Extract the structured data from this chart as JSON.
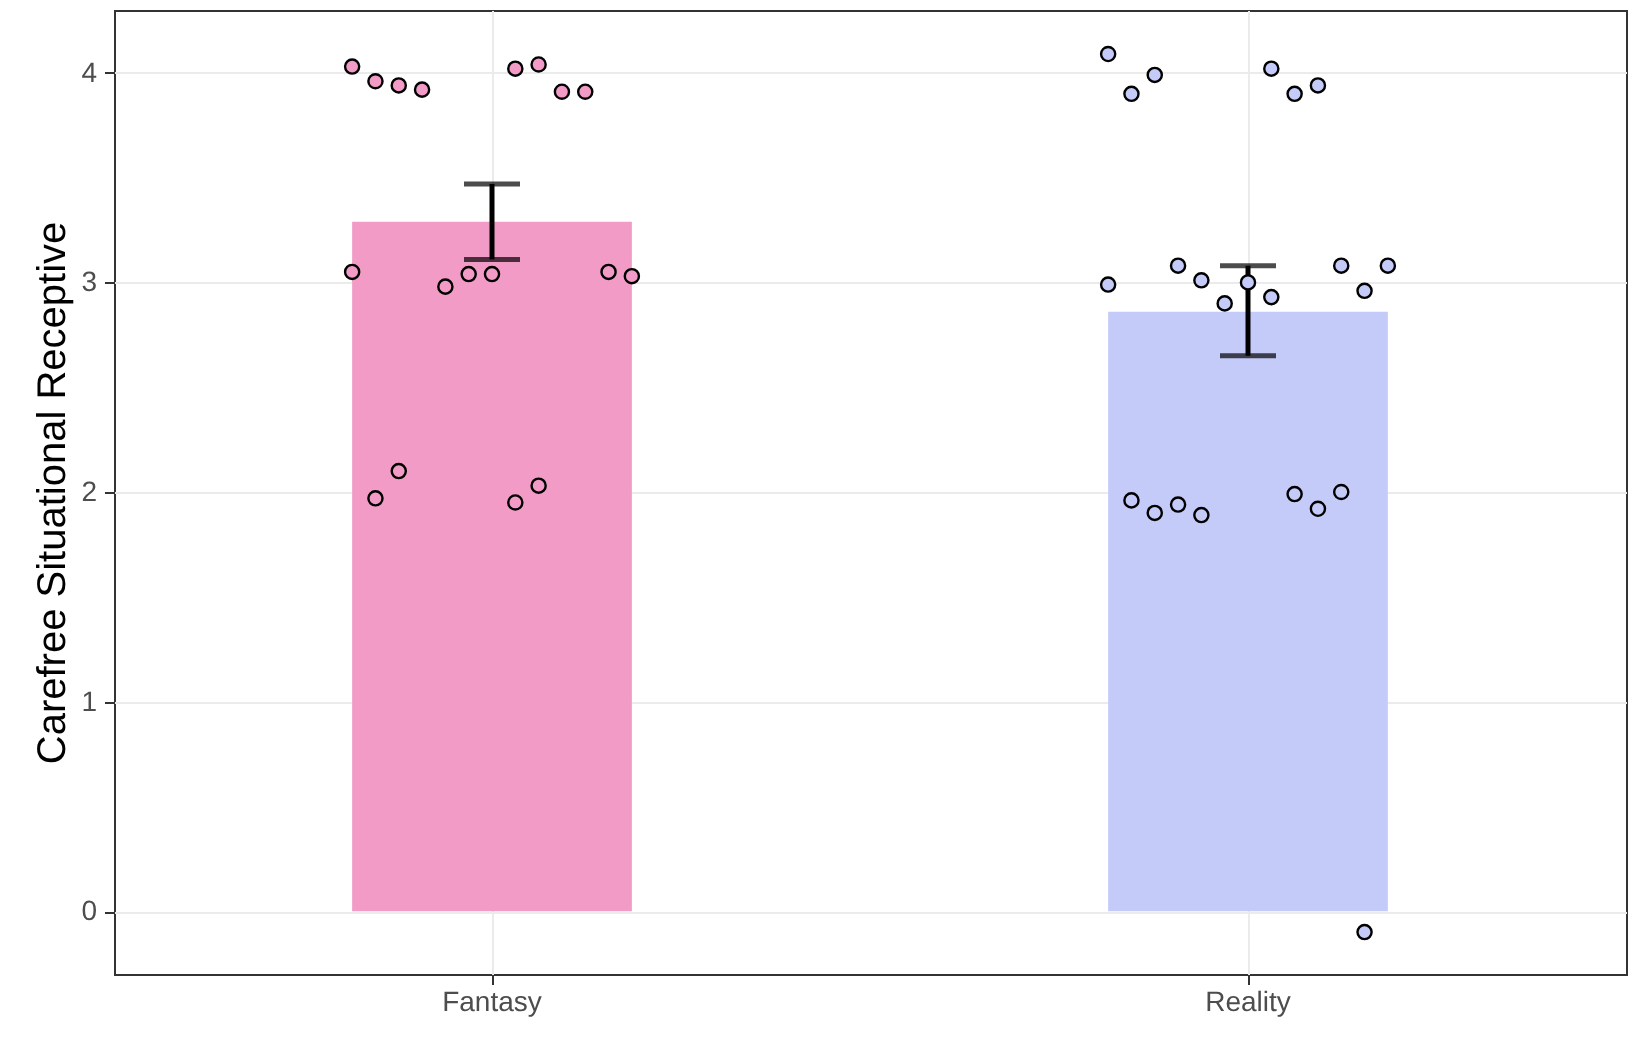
{
  "chart_data": {
    "type": "bar",
    "ylabel": "Carefree Situational Receptive",
    "categories": [
      "Fantasy",
      "Reality"
    ],
    "ylim": [
      -0.3,
      4.3
    ],
    "yticks": [
      0,
      1,
      2,
      3,
      4
    ],
    "grid": true,
    "series": [
      {
        "type": "bar",
        "values": [
          3.29,
          2.86
        ],
        "colors": [
          "#f29bc6",
          "#c5cbf9"
        ],
        "errors": [
          [
            3.11,
            3.47
          ],
          [
            2.65,
            3.08
          ]
        ]
      },
      {
        "type": "scatter",
        "marker": "circle",
        "color": "#f29bc6",
        "x": [
          "Fantasy",
          "Fantasy",
          "Fantasy",
          "Fantasy",
          "Fantasy",
          "Fantasy",
          "Fantasy",
          "Fantasy",
          "Fantasy",
          "Fantasy",
          "Fantasy",
          "Fantasy",
          "Fantasy",
          "Fantasy",
          "Fantasy",
          "Fantasy",
          "Fantasy",
          "Fantasy"
        ],
        "values": [
          4.03,
          4.02,
          3.96,
          4.04,
          3.94,
          3.91,
          3.92,
          3.91,
          2.98,
          3.05,
          3.04,
          3.03,
          3.04,
          3.05,
          1.95,
          1.97,
          2.03,
          2.1
        ]
      },
      {
        "type": "scatter",
        "marker": "circle",
        "color": "#c5cbf9",
        "x": [
          "Reality",
          "Reality",
          "Reality",
          "Reality",
          "Reality",
          "Reality",
          "Reality",
          "Reality",
          "Reality",
          "Reality",
          "Reality",
          "Reality",
          "Reality",
          "Reality",
          "Reality",
          "Reality",
          "Reality",
          "Reality",
          "Reality",
          "Reality",
          "Reality",
          "Reality",
          "Reality"
        ],
        "values": [
          4.09,
          4.02,
          3.9,
          3.9,
          3.99,
          3.94,
          3.08,
          3.08,
          3.01,
          2.96,
          2.9,
          3.08,
          3.0,
          2.99,
          2.93,
          1.96,
          1.99,
          1.9,
          1.92,
          1.94,
          2.0,
          1.89,
          -0.1
        ]
      }
    ]
  }
}
